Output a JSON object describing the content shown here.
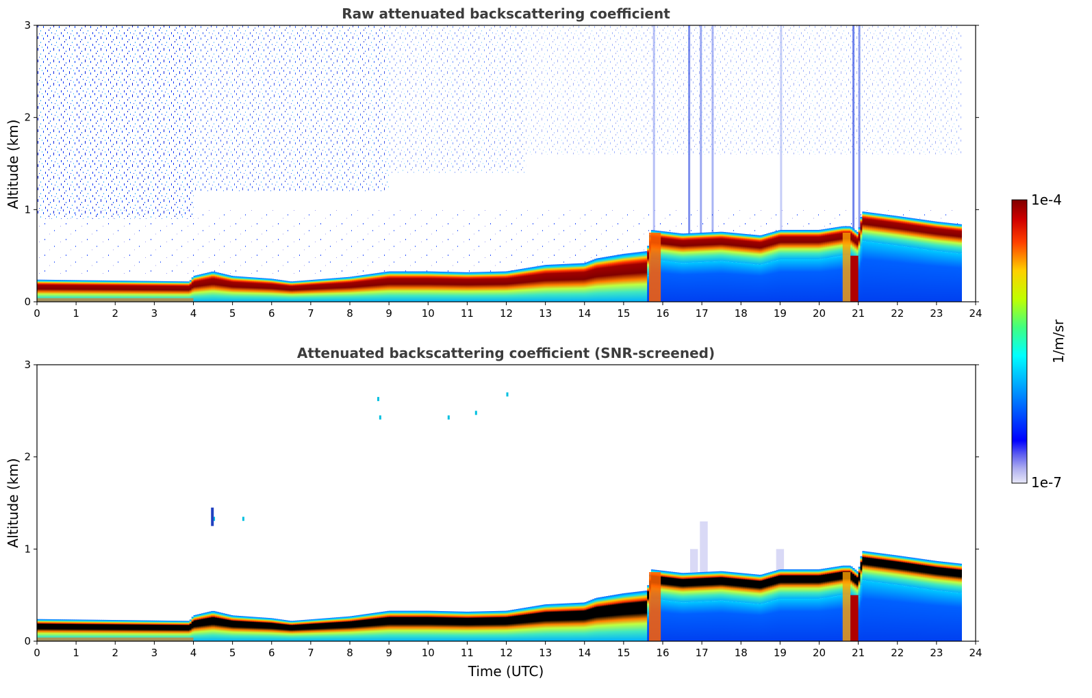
{
  "chart_data": [
    {
      "type": "heatmap",
      "title": "Raw attenuated backscattering coefficient",
      "xlabel": "",
      "ylabel": "Altitude (km)",
      "xlim": [
        0,
        24
      ],
      "ylim": [
        0,
        3
      ],
      "x_ticks": [
        "0",
        "1",
        "2",
        "3",
        "4",
        "5",
        "6",
        "7",
        "8",
        "9",
        "10",
        "11",
        "12",
        "13",
        "14",
        "15",
        "16",
        "17",
        "18",
        "19",
        "20",
        "21",
        "22",
        "23",
        "24"
      ],
      "y_ticks": [
        "0",
        "1",
        "2",
        "3"
      ],
      "data_end_hour": 23.65,
      "boundary_layer_top_km": {
        "hour": [
          0,
          3.9,
          4.0,
          4.5,
          5.0,
          6.0,
          6.5,
          8.0,
          9.0,
          10.0,
          11.0,
          12.0,
          13.0,
          14.0,
          14.3,
          15.0,
          15.6,
          15.7,
          16.5,
          17.5,
          18.5,
          19.0,
          20.0,
          20.6,
          20.8,
          21.0,
          21.1,
          22.0,
          23.0,
          23.65
        ],
        "value": [
          0.24,
          0.22,
          0.28,
          0.33,
          0.28,
          0.25,
          0.22,
          0.27,
          0.33,
          0.33,
          0.32,
          0.33,
          0.4,
          0.42,
          0.47,
          0.52,
          0.55,
          0.78,
          0.74,
          0.76,
          0.72,
          0.78,
          0.78,
          0.82,
          0.82,
          0.75,
          0.98,
          0.93,
          0.87,
          0.84
        ]
      },
      "noise_region": "dense high-altitude noise, strongest 0–4 UTC and 21 UTC",
      "colormap": "jet",
      "colors": {
        "strong": "#800000",
        "mid": "#00e5c0",
        "weak": "#0033ff",
        "background": "#ffffff"
      }
    },
    {
      "type": "heatmap",
      "title": "Attenuated backscattering coefficient (SNR-screened)",
      "xlabel": "Time (UTC)",
      "ylabel": "Altitude (km)",
      "xlim": [
        0,
        24
      ],
      "ylim": [
        0,
        3
      ],
      "x_ticks": [
        "0",
        "1",
        "2",
        "3",
        "4",
        "5",
        "6",
        "7",
        "8",
        "9",
        "10",
        "11",
        "12",
        "13",
        "14",
        "15",
        "16",
        "17",
        "18",
        "19",
        "20",
        "21",
        "22",
        "23",
        "24"
      ],
      "y_ticks": [
        "0",
        "1",
        "2",
        "3"
      ],
      "data_end_hour": 23.65,
      "saturated_color": "#000000"
    }
  ],
  "colorbar": {
    "label": "1/m/sr",
    "max_label": "1e-4",
    "min_label": "1e-7",
    "scale": "log"
  }
}
